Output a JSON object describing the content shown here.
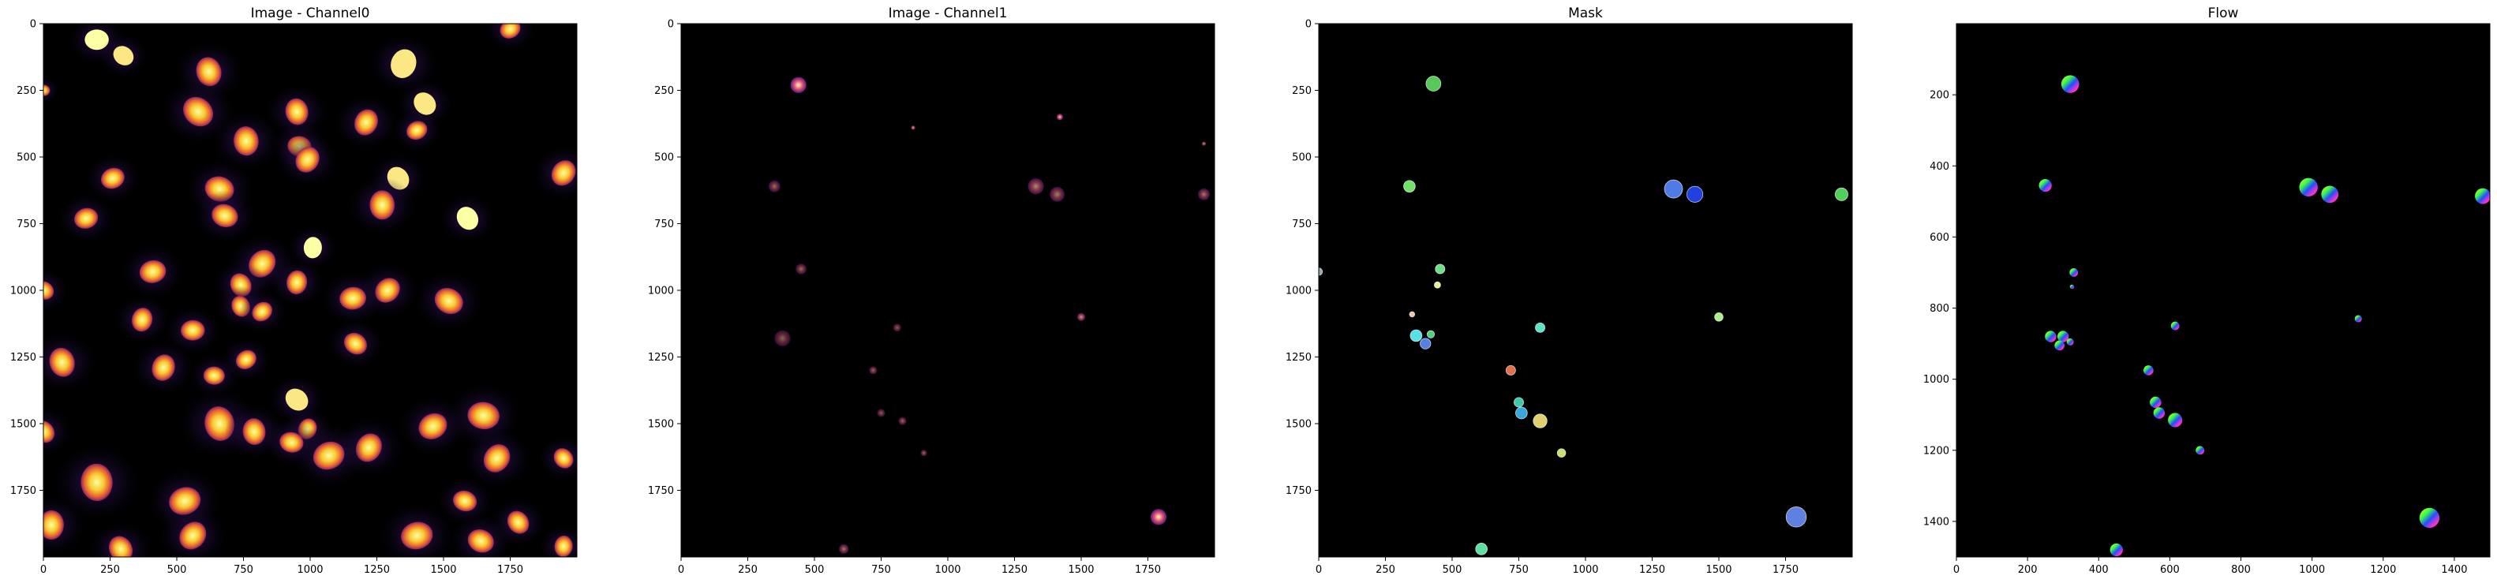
{
  "chart_data": [
    {
      "type": "heatmap",
      "title": "Image - Channel0",
      "colormap": "inferno",
      "xlim": [
        0,
        2000
      ],
      "ylim": [
        2000,
        0
      ],
      "x_ticks": [
        0,
        250,
        500,
        750,
        1000,
        1250,
        1500,
        1750
      ],
      "y_ticks": [
        0,
        250,
        500,
        750,
        1000,
        1250,
        1500,
        1750
      ],
      "objects": [
        {
          "x": 200,
          "y": 60,
          "r": 45,
          "v": 1.0
        },
        {
          "x": 300,
          "y": 120,
          "r": 40,
          "v": 0.95
        },
        {
          "x": 620,
          "y": 180,
          "r": 55,
          "v": 0.9
        },
        {
          "x": 1350,
          "y": 150,
          "r": 55,
          "v": 0.95
        },
        {
          "x": 1750,
          "y": 20,
          "r": 40,
          "v": 0.9
        },
        {
          "x": 0,
          "y": 250,
          "r": 25,
          "v": 0.8
        },
        {
          "x": 580,
          "y": 330,
          "r": 60,
          "v": 0.85
        },
        {
          "x": 950,
          "y": 330,
          "r": 50,
          "v": 0.85
        },
        {
          "x": 1210,
          "y": 370,
          "r": 50,
          "v": 0.85
        },
        {
          "x": 1400,
          "y": 400,
          "r": 40,
          "v": 0.85
        },
        {
          "x": 960,
          "y": 460,
          "r": 45,
          "v": 0.9
        },
        {
          "x": 1430,
          "y": 300,
          "r": 45,
          "v": 0.95
        },
        {
          "x": 760,
          "y": 440,
          "r": 55,
          "v": 0.85
        },
        {
          "x": 990,
          "y": 510,
          "r": 50,
          "v": 0.85
        },
        {
          "x": 260,
          "y": 580,
          "r": 45,
          "v": 0.85
        },
        {
          "x": 660,
          "y": 620,
          "r": 55,
          "v": 0.85
        },
        {
          "x": 1330,
          "y": 580,
          "r": 45,
          "v": 0.95
        },
        {
          "x": 1270,
          "y": 680,
          "r": 55,
          "v": 0.85
        },
        {
          "x": 1950,
          "y": 560,
          "r": 50,
          "v": 0.9
        },
        {
          "x": 160,
          "y": 730,
          "r": 45,
          "v": 0.85
        },
        {
          "x": 680,
          "y": 720,
          "r": 50,
          "v": 0.85
        },
        {
          "x": 1590,
          "y": 730,
          "r": 45,
          "v": 1.0
        },
        {
          "x": 1010,
          "y": 840,
          "r": 40,
          "v": 1.0
        },
        {
          "x": 820,
          "y": 900,
          "r": 55,
          "v": 0.85
        },
        {
          "x": 410,
          "y": 930,
          "r": 50,
          "v": 0.85
        },
        {
          "x": 0,
          "y": 1000,
          "r": 40,
          "v": 0.85
        },
        {
          "x": 740,
          "y": 980,
          "r": 45,
          "v": 0.85
        },
        {
          "x": 950,
          "y": 970,
          "r": 45,
          "v": 0.85
        },
        {
          "x": 1290,
          "y": 1000,
          "r": 50,
          "v": 0.85
        },
        {
          "x": 1160,
          "y": 1030,
          "r": 50,
          "v": 0.85
        },
        {
          "x": 1520,
          "y": 1040,
          "r": 55,
          "v": 0.85
        },
        {
          "x": 740,
          "y": 1060,
          "r": 40,
          "v": 0.85
        },
        {
          "x": 370,
          "y": 1110,
          "r": 45,
          "v": 0.85
        },
        {
          "x": 820,
          "y": 1080,
          "r": 40,
          "v": 0.85
        },
        {
          "x": 560,
          "y": 1150,
          "r": 45,
          "v": 0.85
        },
        {
          "x": 1170,
          "y": 1200,
          "r": 45,
          "v": 0.85
        },
        {
          "x": 70,
          "y": 1270,
          "r": 55,
          "v": 0.85
        },
        {
          "x": 450,
          "y": 1290,
          "r": 50,
          "v": 0.85
        },
        {
          "x": 760,
          "y": 1260,
          "r": 40,
          "v": 0.85
        },
        {
          "x": 640,
          "y": 1320,
          "r": 40,
          "v": 0.85
        },
        {
          "x": 950,
          "y": 1410,
          "r": 45,
          "v": 0.95
        },
        {
          "x": 660,
          "y": 1500,
          "r": 65,
          "v": 0.85
        },
        {
          "x": 990,
          "y": 1520,
          "r": 40,
          "v": 0.85
        },
        {
          "x": 1460,
          "y": 1510,
          "r": 55,
          "v": 0.85
        },
        {
          "x": 1650,
          "y": 1470,
          "r": 60,
          "v": 0.85
        },
        {
          "x": 0,
          "y": 1530,
          "r": 45,
          "v": 0.85
        },
        {
          "x": 790,
          "y": 1530,
          "r": 50,
          "v": 0.85
        },
        {
          "x": 1220,
          "y": 1590,
          "r": 55,
          "v": 0.85
        },
        {
          "x": 1070,
          "y": 1620,
          "r": 60,
          "v": 0.85
        },
        {
          "x": 930,
          "y": 1570,
          "r": 45,
          "v": 0.85
        },
        {
          "x": 1950,
          "y": 1630,
          "r": 40,
          "v": 0.85
        },
        {
          "x": 200,
          "y": 1720,
          "r": 70,
          "v": 0.85
        },
        {
          "x": 1700,
          "y": 1630,
          "r": 55,
          "v": 0.85
        },
        {
          "x": 530,
          "y": 1790,
          "r": 60,
          "v": 0.85
        },
        {
          "x": 1580,
          "y": 1790,
          "r": 45,
          "v": 0.85
        },
        {
          "x": 1780,
          "y": 1870,
          "r": 45,
          "v": 0.85
        },
        {
          "x": 30,
          "y": 1880,
          "r": 55,
          "v": 0.85
        },
        {
          "x": 560,
          "y": 1920,
          "r": 55,
          "v": 0.85
        },
        {
          "x": 1400,
          "y": 1920,
          "r": 60,
          "v": 0.85
        },
        {
          "x": 1640,
          "y": 1940,
          "r": 50,
          "v": 0.85
        },
        {
          "x": 290,
          "y": 1970,
          "r": 50,
          "v": 0.85
        },
        {
          "x": 1950,
          "y": 1960,
          "r": 40,
          "v": 0.85
        }
      ]
    },
    {
      "type": "heatmap",
      "title": "Image - Channel1",
      "colormap": "magma",
      "xlim": [
        0,
        2000
      ],
      "ylim": [
        2000,
        0
      ],
      "x_ticks": [
        0,
        250,
        500,
        750,
        1000,
        1250,
        1500,
        1750
      ],
      "y_ticks": [
        0,
        250,
        500,
        750,
        1000,
        1250,
        1500,
        1750
      ],
      "objects": [
        {
          "x": 440,
          "y": 230,
          "r": 30,
          "v": 1.0
        },
        {
          "x": 1420,
          "y": 350,
          "r": 12,
          "v": 0.9
        },
        {
          "x": 870,
          "y": 390,
          "r": 8,
          "v": 0.8
        },
        {
          "x": 1960,
          "y": 450,
          "r": 8,
          "v": 0.7
        },
        {
          "x": 350,
          "y": 610,
          "r": 22,
          "v": 0.5
        },
        {
          "x": 1330,
          "y": 610,
          "r": 30,
          "v": 0.6
        },
        {
          "x": 1410,
          "y": 640,
          "r": 28,
          "v": 0.55
        },
        {
          "x": 1960,
          "y": 640,
          "r": 22,
          "v": 0.55
        },
        {
          "x": 450,
          "y": 920,
          "r": 20,
          "v": 0.5
        },
        {
          "x": 1500,
          "y": 1100,
          "r": 15,
          "v": 0.7
        },
        {
          "x": 810,
          "y": 1140,
          "r": 15,
          "v": 0.45
        },
        {
          "x": 380,
          "y": 1180,
          "r": 30,
          "v": 0.45
        },
        {
          "x": 720,
          "y": 1300,
          "r": 15,
          "v": 0.5
        },
        {
          "x": 750,
          "y": 1460,
          "r": 15,
          "v": 0.45
        },
        {
          "x": 830,
          "y": 1490,
          "r": 15,
          "v": 0.5
        },
        {
          "x": 910,
          "y": 1610,
          "r": 12,
          "v": 0.5
        },
        {
          "x": 1790,
          "y": 1850,
          "r": 30,
          "v": 1.0
        },
        {
          "x": 610,
          "y": 1970,
          "r": 18,
          "v": 0.55
        }
      ]
    },
    {
      "type": "heatmap",
      "title": "Mask",
      "colormap": "segmentation",
      "xlim": [
        0,
        2000
      ],
      "ylim": [
        2000,
        0
      ],
      "x_ticks": [
        0,
        250,
        500,
        750,
        1000,
        1250,
        1500,
        1750
      ],
      "y_ticks": [
        0,
        250,
        500,
        750,
        1000,
        1250,
        1500,
        1750
      ],
      "objects": [
        {
          "x": 430,
          "y": 225,
          "r": 28,
          "color": "#55c95a"
        },
        {
          "x": 340,
          "y": 610,
          "r": 22,
          "color": "#6fe06a"
        },
        {
          "x": 1330,
          "y": 620,
          "r": 34,
          "color": "#4f7be6"
        },
        {
          "x": 1410,
          "y": 640,
          "r": 30,
          "color": "#2140e0"
        },
        {
          "x": 1960,
          "y": 640,
          "r": 24,
          "color": "#4fd05a"
        },
        {
          "x": 0,
          "y": 930,
          "r": 14,
          "color": "#9aa8b0"
        },
        {
          "x": 455,
          "y": 920,
          "r": 18,
          "color": "#6ee08a"
        },
        {
          "x": 445,
          "y": 980,
          "r": 12,
          "color": "#e6ef9a"
        },
        {
          "x": 350,
          "y": 1090,
          "r": 10,
          "color": "#f2c6b0"
        },
        {
          "x": 1500,
          "y": 1100,
          "r": 16,
          "color": "#aaf08a"
        },
        {
          "x": 830,
          "y": 1140,
          "r": 18,
          "color": "#5de2c6"
        },
        {
          "x": 365,
          "y": 1170,
          "r": 22,
          "color": "#57e0e6"
        },
        {
          "x": 400,
          "y": 1200,
          "r": 20,
          "color": "#5580e6"
        },
        {
          "x": 420,
          "y": 1165,
          "r": 14,
          "color": "#50d080"
        },
        {
          "x": 720,
          "y": 1300,
          "r": 18,
          "color": "#e0704e"
        },
        {
          "x": 750,
          "y": 1420,
          "r": 18,
          "color": "#3ec8b0"
        },
        {
          "x": 760,
          "y": 1460,
          "r": 22,
          "color": "#38a8d8"
        },
        {
          "x": 830,
          "y": 1490,
          "r": 26,
          "color": "#e0d070"
        },
        {
          "x": 910,
          "y": 1610,
          "r": 16,
          "color": "#c8e070"
        },
        {
          "x": 1790,
          "y": 1850,
          "r": 38,
          "color": "#6080e0"
        },
        {
          "x": 610,
          "y": 1970,
          "r": 22,
          "color": "#60e0a0"
        }
      ]
    },
    {
      "type": "heatmap",
      "title": "Flow",
      "colormap": "hsv-flow",
      "xlim": [
        0,
        1500
      ],
      "ylim": [
        1500,
        0
      ],
      "x_ticks": [
        0,
        200,
        400,
        600,
        800,
        1000,
        1200,
        1400
      ],
      "y_ticks": [
        200,
        400,
        600,
        800,
        1000,
        1200,
        1400
      ],
      "objects": [
        {
          "x": 320,
          "y": 170,
          "r": 25
        },
        {
          "x": 250,
          "y": 455,
          "r": 18
        },
        {
          "x": 990,
          "y": 460,
          "r": 26
        },
        {
          "x": 1050,
          "y": 480,
          "r": 24
        },
        {
          "x": 1480,
          "y": 485,
          "r": 22
        },
        {
          "x": 330,
          "y": 700,
          "r": 12
        },
        {
          "x": 325,
          "y": 740,
          "r": 6
        },
        {
          "x": 615,
          "y": 850,
          "r": 12
        },
        {
          "x": 1130,
          "y": 830,
          "r": 10
        },
        {
          "x": 265,
          "y": 880,
          "r": 16
        },
        {
          "x": 300,
          "y": 880,
          "r": 16
        },
        {
          "x": 290,
          "y": 905,
          "r": 14
        },
        {
          "x": 320,
          "y": 895,
          "r": 10
        },
        {
          "x": 540,
          "y": 975,
          "r": 14
        },
        {
          "x": 560,
          "y": 1065,
          "r": 16
        },
        {
          "x": 570,
          "y": 1095,
          "r": 16
        },
        {
          "x": 615,
          "y": 1115,
          "r": 20
        },
        {
          "x": 685,
          "y": 1200,
          "r": 12
        },
        {
          "x": 1330,
          "y": 1390,
          "r": 28
        },
        {
          "x": 450,
          "y": 1480,
          "r": 18
        }
      ]
    }
  ]
}
